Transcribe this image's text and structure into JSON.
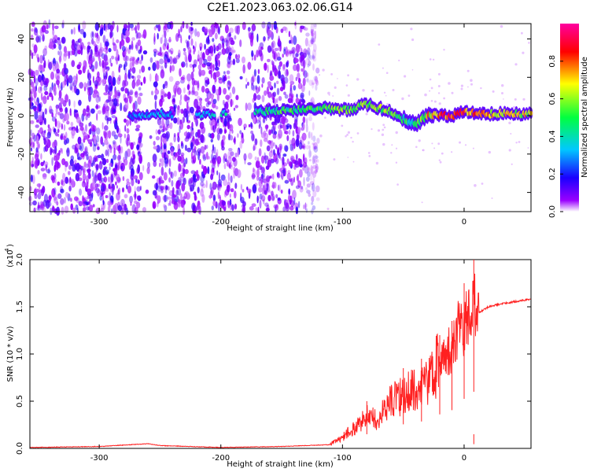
{
  "title": "C2E1.2023.063.02.06.G14",
  "chart_data": [
    {
      "type": "heatmap",
      "title": "C2E1.2023.063.02.06.G14",
      "xlabel": "Height of straight line (km)",
      "ylabel": "Frequency (Hz)",
      "xlim": [
        -357,
        55
      ],
      "ylim": [
        -50,
        48
      ],
      "xticks": [
        -300,
        -200,
        -100,
        0
      ],
      "yticks": [
        -40,
        -20,
        0,
        20,
        40
      ],
      "colorbar": {
        "label": "Normalized spectral amplitude",
        "range": [
          0.0,
          1.0
        ],
        "ticks": [
          "0.0",
          "0.2",
          "0.4",
          "0.6",
          "0.8"
        ],
        "colormap": [
          "#ffffff",
          "#9a00ff",
          "#1a00ff",
          "#00c8ff",
          "#00ff40",
          "#ffff00",
          "#ff0000",
          "#ff00a0"
        ]
      },
      "ridge": {
        "description": "dominant frequency trace vs height",
        "x": [
          -275,
          -250,
          -220,
          -200,
          -170,
          -150,
          -130,
          -110,
          -95,
          -80,
          -70,
          -60,
          -50,
          -40,
          -30,
          -20,
          -10,
          0,
          20,
          40,
          55
        ],
        "frequency": [
          0,
          1,
          0,
          1,
          2,
          3,
          3,
          4,
          3,
          6,
          4,
          2,
          -2,
          -4,
          0,
          0,
          0,
          2,
          1,
          1,
          1
        ],
        "peak_amplitude": [
          0.3,
          0.35,
          0.3,
          0.4,
          0.45,
          0.5,
          0.5,
          0.55,
          0.6,
          0.65,
          0.6,
          0.55,
          0.5,
          0.45,
          0.7,
          0.85,
          0.85,
          0.8,
          0.7,
          0.7,
          0.7
        ]
      }
    },
    {
      "type": "line",
      "xlabel": "Height of straight line (km)",
      "ylabel": "SNR (10 * v/v)",
      "yunit": "(x10",
      "yunit_exp": "4",
      "xlim": [
        -357,
        55
      ],
      "ylim": [
        0,
        2.0
      ],
      "xticks": [
        -300,
        -200,
        -100,
        0
      ],
      "yticks": [
        "0.0",
        "0.5",
        "1.0",
        "1.5",
        "2.0"
      ],
      "series": [
        {
          "name": "SNR",
          "color": "#ff2020",
          "x": [
            -357,
            -300,
            -260,
            -250,
            -200,
            -150,
            -110,
            -100,
            -90,
            -80,
            -70,
            -60,
            -50,
            -40,
            -30,
            -20,
            -10,
            -5,
            0,
            5,
            10,
            20,
            30,
            40,
            50,
            55
          ],
          "y": [
            0.01,
            0.02,
            0.05,
            0.03,
            0.01,
            0.02,
            0.04,
            0.1,
            0.2,
            0.3,
            0.28,
            0.45,
            0.5,
            0.55,
            0.65,
            0.8,
            1.0,
            1.15,
            1.2,
            1.35,
            1.42,
            1.5,
            1.53,
            1.55,
            1.57,
            1.58
          ],
          "spikes": [
            {
              "x": -80,
              "y": 0.5
            },
            {
              "x": -50,
              "y": 0.85
            },
            {
              "x": -35,
              "y": 0.95
            },
            {
              "x": -20,
              "y": 1.2
            },
            {
              "x": -10,
              "y": 1.35
            },
            {
              "x": 0,
              "y": 1.75
            },
            {
              "x": 8,
              "y": 2.05
            },
            {
              "x": 8,
              "y": 0.15
            }
          ]
        }
      ]
    }
  ]
}
